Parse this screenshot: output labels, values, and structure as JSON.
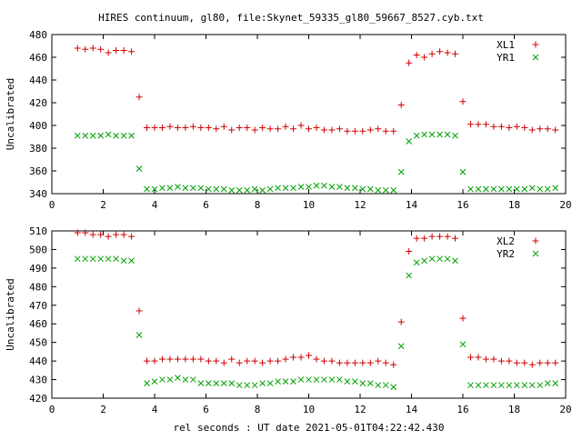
{
  "title": "HIRES continuum, gl80, file:Skynet_59335_gl80_59667_8527.cyb.txt",
  "colors": {
    "series1": "#d00000",
    "series2": "#00a000",
    "axis": "#000000"
  },
  "chart_data": [
    {
      "type": "scatter",
      "ylabel": "Uncalibrated",
      "xlabel": "",
      "xlim": [
        0,
        20
      ],
      "ylim": [
        340,
        480
      ],
      "xticks": [
        0,
        2,
        4,
        6,
        8,
        10,
        12,
        14,
        16,
        18,
        20
      ],
      "yticks": [
        340,
        360,
        380,
        400,
        420,
        440,
        460,
        480
      ],
      "legend_position": "top-right",
      "series": [
        {
          "name": "XL1",
          "marker": "plus",
          "color": "#d00000",
          "x": [
            1.0,
            1.3,
            1.6,
            1.9,
            2.2,
            2.5,
            2.8,
            3.1,
            3.4,
            3.7,
            4.0,
            4.3,
            4.6,
            4.9,
            5.2,
            5.5,
            5.8,
            6.1,
            6.4,
            6.7,
            7.0,
            7.3,
            7.6,
            7.9,
            8.2,
            8.5,
            8.8,
            9.1,
            9.4,
            9.7,
            10.0,
            10.3,
            10.6,
            10.9,
            11.2,
            11.5,
            11.8,
            12.1,
            12.4,
            12.7,
            13.0,
            13.3,
            13.6,
            13.9,
            14.2,
            14.5,
            14.8,
            15.1,
            15.4,
            15.7,
            16.0,
            16.3,
            16.6,
            16.9,
            17.2,
            17.5,
            17.8,
            18.1,
            18.4,
            18.7,
            19.0,
            19.3,
            19.6
          ],
          "y": [
            468,
            467,
            468,
            467,
            464,
            466,
            466,
            465,
            425,
            398,
            398,
            398,
            399,
            398,
            398,
            399,
            398,
            398,
            397,
            399,
            396,
            398,
            398,
            396,
            398,
            397,
            397,
            399,
            397,
            400,
            397,
            398,
            396,
            396,
            397,
            395,
            395,
            395,
            396,
            397,
            395,
            395,
            418,
            455,
            462,
            460,
            463,
            465,
            464,
            463,
            421,
            401,
            401,
            401,
            399,
            399,
            398,
            399,
            398,
            396,
            397,
            397,
            396
          ]
        },
        {
          "name": "YR1",
          "marker": "cross",
          "color": "#00a000",
          "x": [
            1.0,
            1.3,
            1.6,
            1.9,
            2.2,
            2.5,
            2.8,
            3.1,
            3.4,
            3.7,
            4.0,
            4.3,
            4.6,
            4.9,
            5.2,
            5.5,
            5.8,
            6.1,
            6.4,
            6.7,
            7.0,
            7.3,
            7.6,
            7.9,
            8.2,
            8.5,
            8.8,
            9.1,
            9.4,
            9.7,
            10.0,
            10.3,
            10.6,
            10.9,
            11.2,
            11.5,
            11.8,
            12.1,
            12.4,
            12.7,
            13.0,
            13.3,
            13.6,
            13.9,
            14.2,
            14.5,
            14.8,
            15.1,
            15.4,
            15.7,
            16.0,
            16.3,
            16.6,
            16.9,
            17.2,
            17.5,
            17.8,
            18.1,
            18.4,
            18.7,
            19.0,
            19.3,
            19.6
          ],
          "y": [
            391,
            391,
            391,
            391,
            392,
            391,
            391,
            391,
            362,
            344,
            344,
            345,
            345,
            346,
            345,
            345,
            345,
            344,
            344,
            344,
            343,
            343,
            343,
            344,
            343,
            344,
            345,
            345,
            345,
            346,
            346,
            347,
            347,
            346,
            346,
            345,
            345,
            344,
            344,
            343,
            343,
            343,
            359,
            386,
            391,
            392,
            392,
            392,
            392,
            391,
            359,
            344,
            344,
            344,
            344,
            344,
            344,
            344,
            344,
            345,
            344,
            344,
            345
          ]
        }
      ]
    },
    {
      "type": "scatter",
      "ylabel": "Uncalibrated",
      "xlabel": "rel seconds : UT date 2021-05-01T04:22:42.430",
      "xlim": [
        0,
        20
      ],
      "ylim": [
        420,
        510
      ],
      "xticks": [
        0,
        2,
        4,
        6,
        8,
        10,
        12,
        14,
        16,
        18,
        20
      ],
      "yticks": [
        420,
        430,
        440,
        450,
        460,
        470,
        480,
        490,
        500,
        510
      ],
      "legend_position": "top-right",
      "series": [
        {
          "name": "XL2",
          "marker": "plus",
          "color": "#d00000",
          "x": [
            1.0,
            1.3,
            1.6,
            1.9,
            2.2,
            2.5,
            2.8,
            3.1,
            3.4,
            3.7,
            4.0,
            4.3,
            4.6,
            4.9,
            5.2,
            5.5,
            5.8,
            6.1,
            6.4,
            6.7,
            7.0,
            7.3,
            7.6,
            7.9,
            8.2,
            8.5,
            8.8,
            9.1,
            9.4,
            9.7,
            10.0,
            10.3,
            10.6,
            10.9,
            11.2,
            11.5,
            11.8,
            12.1,
            12.4,
            12.7,
            13.0,
            13.3,
            13.6,
            13.9,
            14.2,
            14.5,
            14.8,
            15.1,
            15.4,
            15.7,
            16.0,
            16.3,
            16.6,
            16.9,
            17.2,
            17.5,
            17.8,
            18.1,
            18.4,
            18.7,
            19.0,
            19.3,
            19.6
          ],
          "y": [
            509,
            509,
            508,
            508,
            507,
            508,
            508,
            507,
            467,
            440,
            440,
            441,
            441,
            441,
            441,
            441,
            441,
            440,
            440,
            439,
            441,
            439,
            440,
            440,
            439,
            440,
            440,
            441,
            442,
            442,
            443,
            441,
            440,
            440,
            439,
            439,
            439,
            439,
            439,
            440,
            439,
            438,
            461,
            499,
            506,
            506,
            507,
            507,
            507,
            506,
            463,
            442,
            442,
            441,
            441,
            440,
            440,
            439,
            439,
            438,
            439,
            439,
            439
          ]
        },
        {
          "name": "YR2",
          "marker": "cross",
          "color": "#00a000",
          "x": [
            1.0,
            1.3,
            1.6,
            1.9,
            2.2,
            2.5,
            2.8,
            3.1,
            3.4,
            3.7,
            4.0,
            4.3,
            4.6,
            4.9,
            5.2,
            5.5,
            5.8,
            6.1,
            6.4,
            6.7,
            7.0,
            7.3,
            7.6,
            7.9,
            8.2,
            8.5,
            8.8,
            9.1,
            9.4,
            9.7,
            10.0,
            10.3,
            10.6,
            10.9,
            11.2,
            11.5,
            11.8,
            12.1,
            12.4,
            12.7,
            13.0,
            13.3,
            13.6,
            13.9,
            14.2,
            14.5,
            14.8,
            15.1,
            15.4,
            15.7,
            16.0,
            16.3,
            16.6,
            16.9,
            17.2,
            17.5,
            17.8,
            18.1,
            18.4,
            18.7,
            19.0,
            19.3,
            19.6
          ],
          "y": [
            495,
            495,
            495,
            495,
            495,
            495,
            494,
            494,
            454,
            428,
            429,
            430,
            430,
            431,
            430,
            430,
            428,
            428,
            428,
            428,
            428,
            427,
            427,
            427,
            428,
            428,
            429,
            429,
            429,
            430,
            430,
            430,
            430,
            430,
            430,
            429,
            429,
            428,
            428,
            427,
            427,
            426,
            448,
            486,
            493,
            494,
            495,
            495,
            495,
            494,
            449,
            427,
            427,
            427,
            427,
            427,
            427,
            427,
            427,
            427,
            427,
            428,
            428
          ]
        }
      ]
    }
  ]
}
